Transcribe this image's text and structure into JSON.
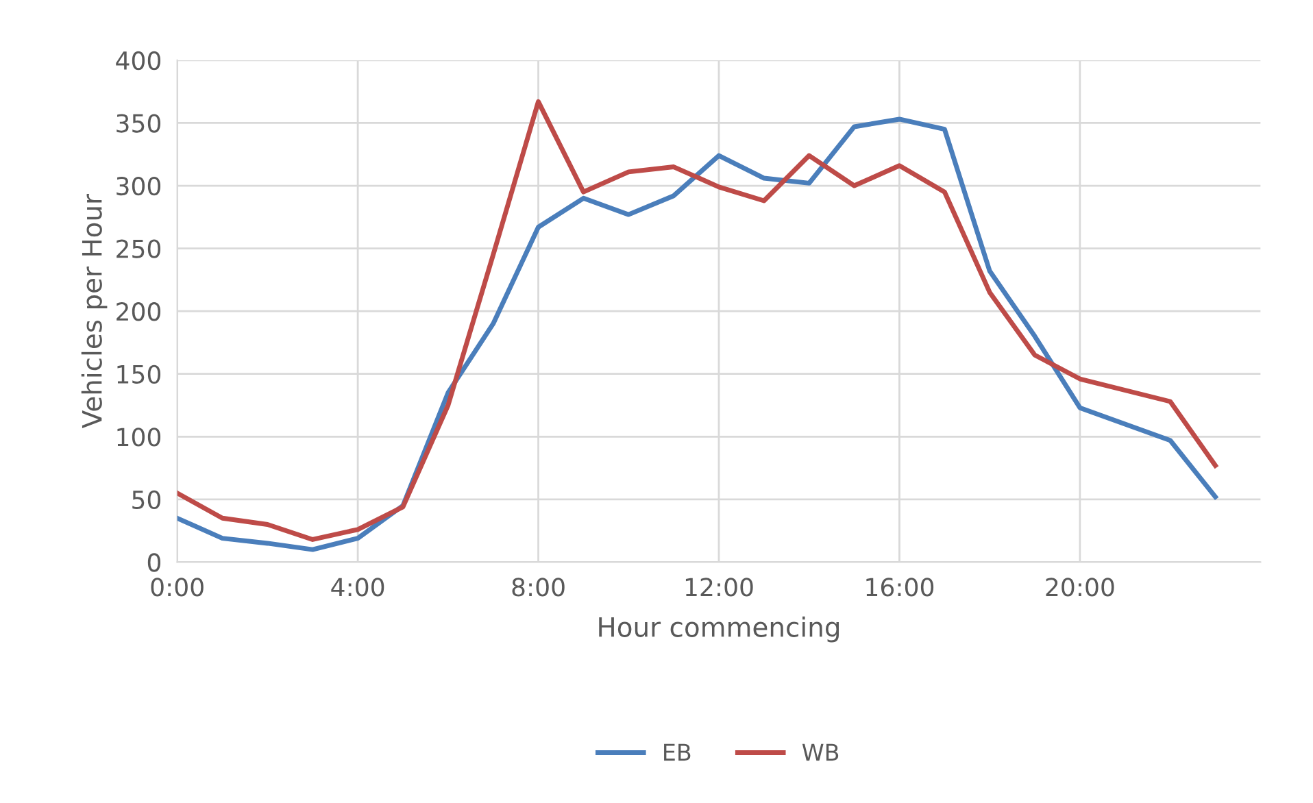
{
  "chart_data": {
    "type": "line",
    "xlabel": "Hour commencing",
    "ylabel": "Vehicles per Hour",
    "xlim": [
      0,
      24
    ],
    "xticks": [
      {
        "value": 0,
        "label": "0:00"
      },
      {
        "value": 4,
        "label": "4:00"
      },
      {
        "value": 8,
        "label": "8:00"
      },
      {
        "value": 12,
        "label": "12:00"
      },
      {
        "value": 16,
        "label": "16:00"
      },
      {
        "value": 20,
        "label": "20:00"
      }
    ],
    "ylim": [
      0,
      400
    ],
    "yticks": [
      0,
      50,
      100,
      150,
      200,
      250,
      300,
      350,
      400
    ],
    "grid": true,
    "legend": "bottom",
    "series": [
      {
        "name": "EB",
        "color": "#4a7ebb",
        "x": [
          0,
          1,
          2,
          3,
          4,
          5,
          6,
          7,
          8,
          9,
          10,
          11,
          12,
          13,
          14,
          15,
          16,
          17,
          18,
          19,
          20,
          22,
          23
        ],
        "values": [
          35,
          19,
          15,
          10,
          19,
          45,
          135,
          190,
          267,
          290,
          277,
          292,
          324,
          306,
          302,
          347,
          353,
          345,
          232,
          180,
          123,
          97,
          52
        ]
      },
      {
        "name": "WB",
        "color": "#be4b48",
        "x": [
          0,
          1,
          2,
          3,
          4,
          5,
          6,
          7,
          8,
          9,
          10,
          11,
          12,
          13,
          14,
          15,
          16,
          17,
          18,
          19,
          20,
          22,
          23
        ],
        "values": [
          55,
          35,
          30,
          18,
          26,
          44,
          125,
          245,
          367,
          295,
          311,
          315,
          299,
          288,
          324,
          300,
          316,
          295,
          215,
          165,
          146,
          128,
          77
        ]
      }
    ]
  }
}
